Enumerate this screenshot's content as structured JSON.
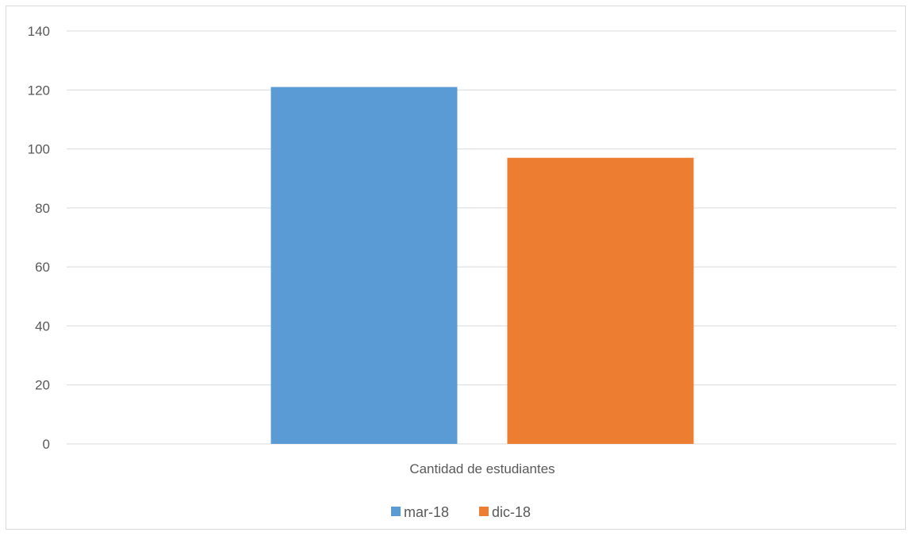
{
  "chart_data": {
    "type": "bar",
    "categories": [
      "Cantidad de estudiantes"
    ],
    "series": [
      {
        "name": "mar-18",
        "values": [
          121
        ],
        "color": "#5b9bd5"
      },
      {
        "name": "dic-18",
        "values": [
          97
        ],
        "color": "#ed7d31"
      }
    ],
    "title": "",
    "xlabel": "",
    "ylabel": "",
    "ylim": [
      0,
      140
    ],
    "yticks": [
      "0",
      "20",
      "40",
      "60",
      "80",
      "100",
      "120",
      "140"
    ],
    "grid": true,
    "legend": "bottom"
  }
}
